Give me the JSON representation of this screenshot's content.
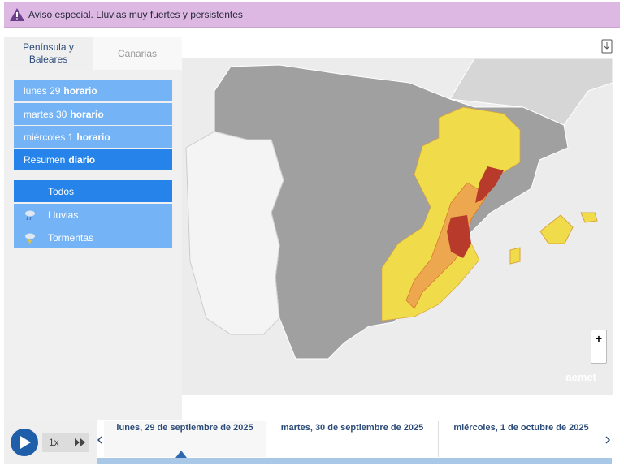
{
  "banner": {
    "text": "Aviso especial. Lluvias muy fuertes y persistentes"
  },
  "tabs": [
    "Península y Baleares",
    "Canarias"
  ],
  "days": [
    {
      "label": "lunes 29",
      "mode": "horario"
    },
    {
      "label": "martes 30",
      "mode": "horario"
    },
    {
      "label": "miércoles 1",
      "mode": "horario"
    },
    {
      "label": "Resumen",
      "mode": "diario"
    }
  ],
  "filters": [
    "Todos",
    "Lluvias",
    "Tormentas"
  ],
  "map": {
    "zoom_in": "+",
    "zoom_out": "−",
    "logo": "aemet"
  },
  "player": {
    "speed": "1x"
  },
  "timeline": {
    "dates": [
      "lunes, 29 de septiembre de 2025",
      "martes, 30 de septiembre de 2025",
      "miércoles, 1 de octubre de 2025"
    ]
  }
}
